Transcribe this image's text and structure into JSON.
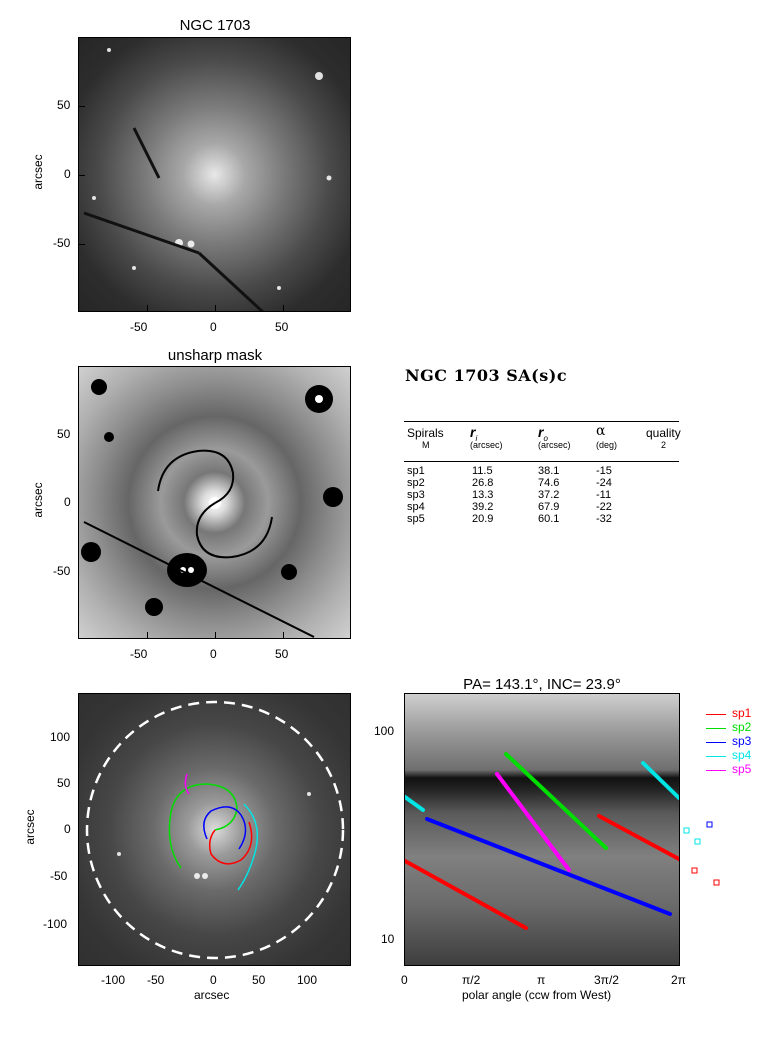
{
  "panel1": {
    "title": "NGC 1703",
    "ylabel": "arcsec",
    "xticks": [
      "-50",
      "0",
      "50"
    ],
    "yticks": [
      "50",
      "0",
      "-50"
    ]
  },
  "panel2": {
    "title": "unsharp mask",
    "ylabel": "arcsec",
    "xticks": [
      "-50",
      "0",
      "50"
    ],
    "yticks": [
      "50",
      "0",
      "-50"
    ]
  },
  "info": {
    "heading": "NGC 1703  SA(s)c",
    "columns": [
      {
        "h1": "Spirals",
        "h2": "M"
      },
      {
        "h1": "r",
        "sub": "i",
        "h2": "(arcsec)"
      },
      {
        "h1": "r",
        "sub": "o",
        "h2": "(arcsec)"
      },
      {
        "h1": "α",
        "h2": "(deg)"
      },
      {
        "h1": "quality",
        "h2": "2"
      }
    ],
    "rows": [
      {
        "name": "sp1",
        "ri": "11.5",
        "ro": "38.1",
        "alpha": "-15"
      },
      {
        "name": "sp2",
        "ri": "26.8",
        "ro": "74.6",
        "alpha": "-24"
      },
      {
        "name": "sp3",
        "ri": "13.3",
        "ro": "37.2",
        "alpha": "-11"
      },
      {
        "name": "sp4",
        "ri": "39.2",
        "ro": "67.9",
        "alpha": "-22"
      },
      {
        "name": "sp5",
        "ri": "20.9",
        "ro": "60.1",
        "alpha": "-32"
      }
    ]
  },
  "panel3": {
    "xlabel": "arcsec",
    "ylabel": "arcsec",
    "xticks": [
      "-100",
      "-50",
      "0",
      "50",
      "100"
    ],
    "yticks": [
      "100",
      "50",
      "0",
      "-50",
      "-100"
    ]
  },
  "panel4": {
    "title": "PA= 143.1°, INC=  23.9°",
    "xlabel": "polar angle (ccw from West)",
    "xticks": [
      "0",
      "π/2",
      "π",
      "3π/2",
      "2π"
    ],
    "yticks": [
      "100",
      "10"
    ]
  },
  "legend": [
    {
      "name": "sp1",
      "color": "#ff0000"
    },
    {
      "name": "sp2",
      "color": "#00dd00"
    },
    {
      "name": "sp3",
      "color": "#0000ff"
    },
    {
      "name": "sp4",
      "color": "#00e5e5"
    },
    {
      "name": "sp5",
      "color": "#ff00ff"
    }
  ]
}
